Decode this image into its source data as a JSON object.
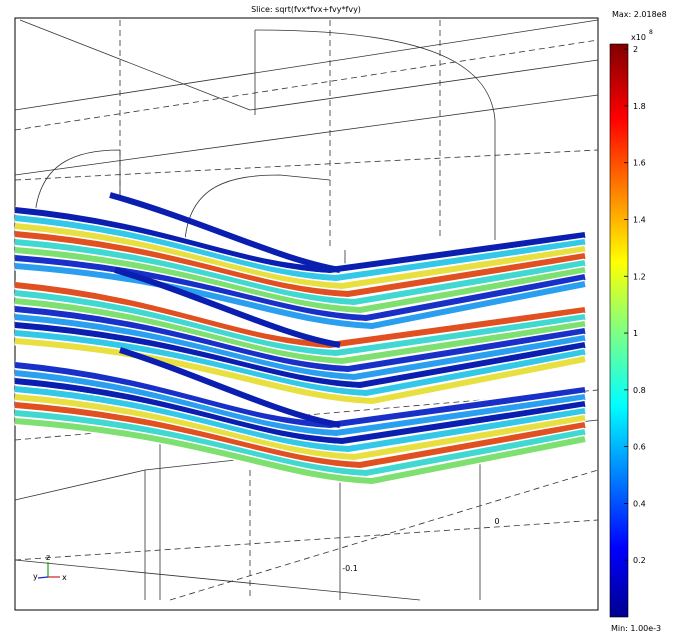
{
  "plot": {
    "title": "Slice: sqrt(fvx*fvx+fvy*fvy)",
    "axis_labels": [
      "0",
      "-0.1"
    ]
  },
  "colorbar": {
    "max_label": "Max: 2.018e8",
    "min_label": "Min: 1.00e-3",
    "multiplier": "x10",
    "exponent": "8",
    "range": [
      0,
      2.018
    ],
    "ticks": [
      0.2,
      0.4,
      0.6,
      0.8,
      1,
      1.2,
      1.4,
      1.6,
      1.8,
      2
    ]
  },
  "triad": {
    "labels": [
      "y",
      "z",
      "x"
    ]
  }
}
